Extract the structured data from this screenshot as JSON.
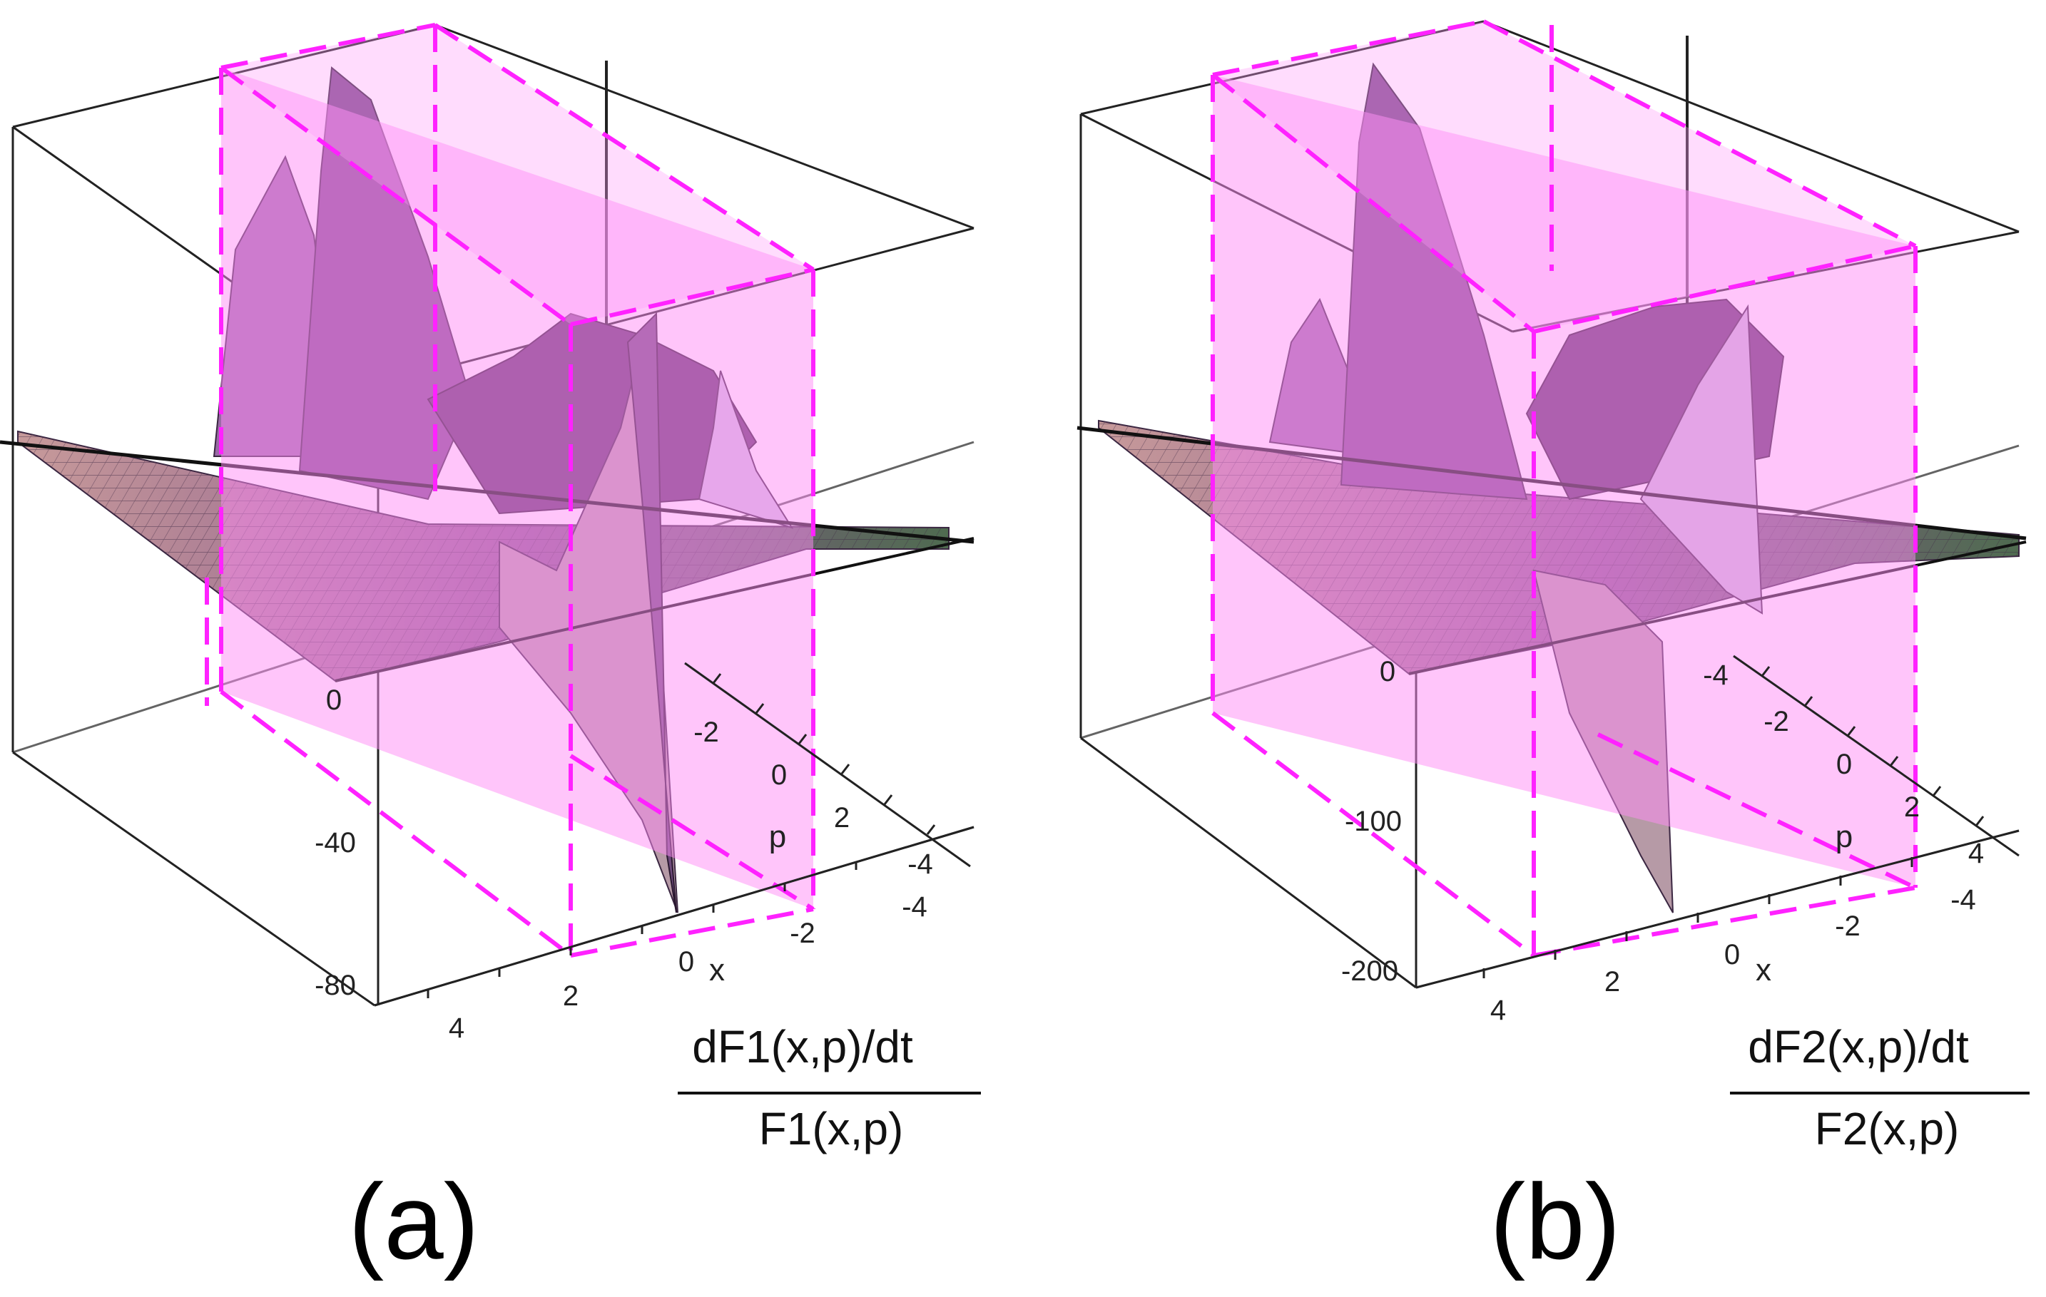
{
  "chart_data": [
    {
      "type": "surface3d",
      "panel_label": "(a)",
      "zlabel": {
        "numerator": "dF1(x,p)/dt",
        "denominator": "F1(x,p)"
      },
      "xlabel": "x",
      "ylabel": "p",
      "z_ticks": [
        "0",
        "-40",
        "-80"
      ],
      "x_ticks": [
        "4",
        "2",
        "0",
        "-2",
        "-4"
      ],
      "p_ticks": [
        "-4",
        "-2",
        "0",
        "2",
        "4"
      ],
      "zlim": [
        -80,
        30
      ],
      "highlight_plane": "x in [-2, 2]",
      "colors": {
        "surface": "#8a5a98",
        "plane": "#ff9cf5",
        "plane_edge": "#ff33ff"
      }
    },
    {
      "type": "surface3d",
      "panel_label": "(b)",
      "zlabel": {
        "numerator": "dF2(x,p)/dt",
        "denominator": "F2(x,p)"
      },
      "xlabel": "x",
      "ylabel": "p",
      "z_ticks": [
        "0",
        "-100",
        "-200"
      ],
      "x_ticks": [
        "4",
        "2",
        "0",
        "-2",
        "-4"
      ],
      "p_ticks": [
        "-4",
        "-2",
        "0",
        "2",
        "4"
      ],
      "zlim": [
        -200,
        60
      ],
      "highlight_plane": "x in [-2, 2]",
      "colors": {
        "surface": "#8a5a98",
        "plane": "#ff9cf5",
        "plane_edge": "#ff33ff"
      }
    }
  ]
}
